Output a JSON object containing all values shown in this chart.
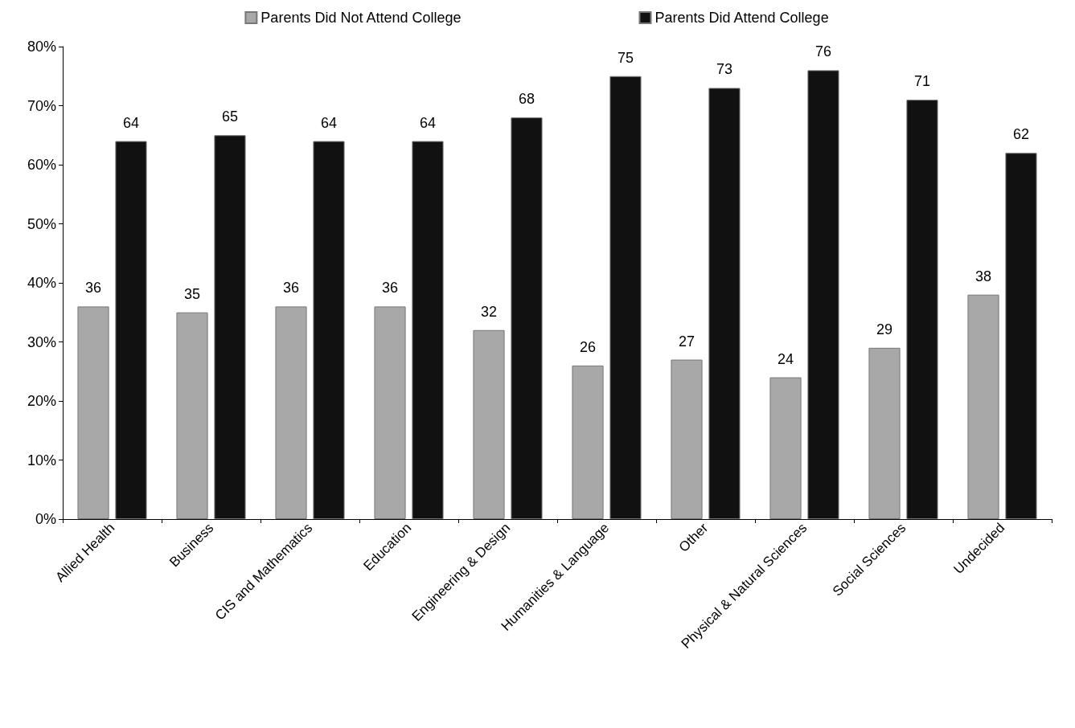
{
  "chart_data": {
    "type": "bar",
    "categories": [
      "Allied Health",
      "Business",
      "CIS and Mathematics",
      "Education",
      "Engineering & Design",
      "Humanities & Language",
      "Other",
      "Physical & Natural Sciences",
      "Social Sciences",
      "Undecided"
    ],
    "series": [
      {
        "name": "Parents Did Not Attend College",
        "color": "#a8a8a8",
        "values": [
          36,
          35,
          36,
          36,
          32,
          26,
          27,
          24,
          29,
          38
        ]
      },
      {
        "name": "Parents Did Attend College",
        "color": "#111111",
        "values": [
          64,
          65,
          64,
          64,
          68,
          75,
          73,
          76,
          71,
          62
        ]
      }
    ],
    "ylim": [
      0,
      80
    ],
    "yticks": [
      {
        "value": 0,
        "label": "0%"
      },
      {
        "value": 10,
        "label": "10%"
      },
      {
        "value": 20,
        "label": "20%"
      },
      {
        "value": 30,
        "label": "30%"
      },
      {
        "value": 40,
        "label": "40%"
      },
      {
        "value": 50,
        "label": "50%"
      },
      {
        "value": 60,
        "label": "60%"
      },
      {
        "value": 70,
        "label": "70%"
      },
      {
        "value": 80,
        "label": "80%"
      }
    ],
    "data_labels": true,
    "legend": "top",
    "grid": false
  }
}
